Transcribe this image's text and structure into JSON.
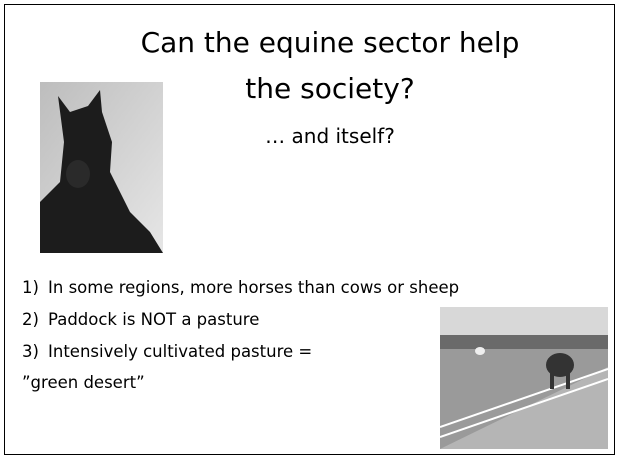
{
  "slide": {
    "title_lines": [
      "Can the equine sector help",
      "the society?"
    ],
    "subtitle": "… and itself?",
    "items": [
      {
        "marker": "1)",
        "text": "In some regions, more horses than cows or sheep"
      },
      {
        "marker": "2)",
        "text": "Paddock is NOT a pasture"
      },
      {
        "marker": "3)",
        "text": "Intensively cultivated pasture ="
      }
    ],
    "continuation": "”green desert”"
  }
}
